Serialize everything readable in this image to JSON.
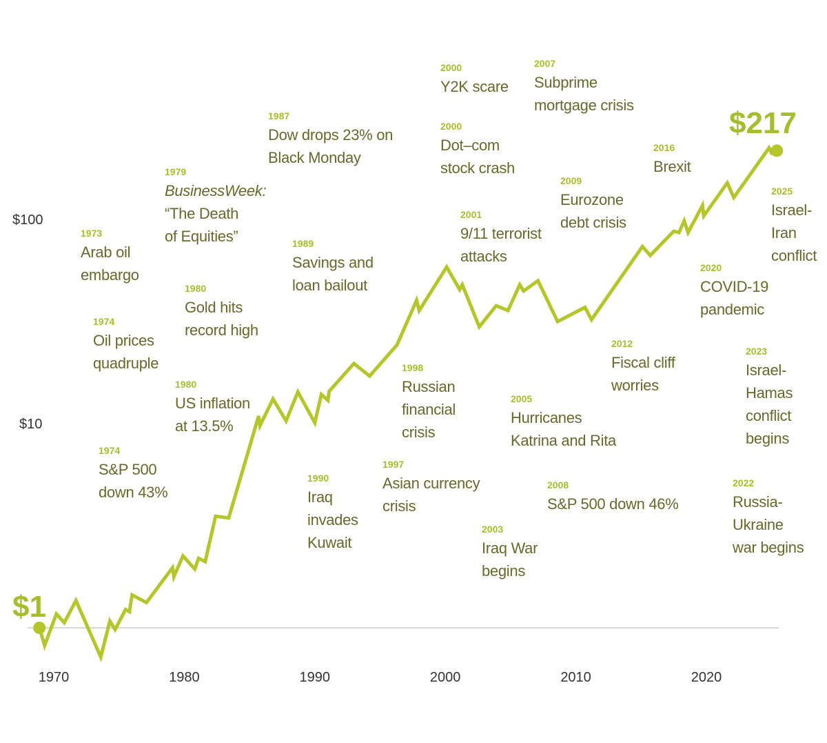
{
  "chart_data": {
    "type": "line",
    "log_scale": true,
    "color": "#b5c62a",
    "x": [
      1968.9,
      1969.3,
      1970.2,
      1970.8,
      1971.7,
      1973.6,
      1974.3,
      1974.7,
      1975.5,
      1975.8,
      1976.0,
      1977.1,
      1979.1,
      1979.2,
      1979.9,
      1980.8,
      1981.1,
      1981.6,
      1982.4,
      1983.4,
      1985.7,
      1985.8,
      1986.8,
      1987.8,
      1988.7,
      1990.0,
      1990.5,
      1991.0,
      1991.1,
      1993.0,
      1994.2,
      1996.3,
      1997.8,
      1998.0,
      2000.1,
      2001.1,
      2001.3,
      2002.6,
      2003.9,
      2004.8,
      2005.7,
      2006.0,
      2007.1,
      2008.6,
      2010.7,
      2011.2,
      2015.1,
      2015.7,
      2017.5,
      2017.9,
      2018.3,
      2018.6,
      2019.7,
      2019.8,
      2021.6,
      2022.1,
      2024.8,
      2025.0,
      2025.4
    ],
    "values": [
      1,
      0.82,
      1.17,
      1.06,
      1.36,
      0.72,
      1.08,
      0.98,
      1.23,
      1.2,
      1.45,
      1.33,
      1.97,
      1.78,
      2.25,
      1.94,
      2.19,
      2.11,
      3.52,
      3.45,
      10.9,
      9.77,
      13.2,
      10.3,
      14.3,
      10.1,
      13.9,
      13.0,
      14.4,
      19.7,
      17.1,
      24.3,
      40.2,
      35.8,
      58.5,
      45.3,
      47.9,
      29.8,
      37.8,
      35.8,
      47.9,
      44.6,
      50.1,
      31.6,
      37.1,
      32.3,
      73.7,
      66.6,
      87.5,
      86.2,
      98.4,
      86.2,
      117,
      104,
      151,
      128,
      224,
      211,
      217
    ],
    "end_label": "$217",
    "xlim": [
      1968,
      2026
    ],
    "xticks": [
      1970,
      1980,
      1990,
      2000,
      2010,
      2020
    ],
    "ylim": [
      0.7,
      300
    ],
    "yticks": [
      {
        "value": 1,
        "label": "$1"
      },
      {
        "value": 10,
        "label": "$10"
      },
      {
        "value": 100,
        "label": "$100"
      }
    ],
    "baseline": 1,
    "annotations": [
      {
        "year": "1973",
        "lines": [
          "Arab oil",
          "embargo"
        ]
      },
      {
        "year": "1974",
        "lines": [
          "Oil prices",
          "quadruple"
        ]
      },
      {
        "year": "1974",
        "lines": [
          "S&P 500",
          "down 43%"
        ]
      },
      {
        "year": "1979",
        "lines": [
          "BusinessWeek:",
          "“The Death",
          "of Equities”"
        ]
      },
      {
        "year": "1980",
        "lines": [
          "Gold hits",
          "record high"
        ]
      },
      {
        "year": "1980",
        "lines": [
          "US inflation",
          "at 13.5%"
        ]
      },
      {
        "year": "1987",
        "lines": [
          "Dow drops 23% on",
          "Black Monday"
        ]
      },
      {
        "year": "1989",
        "lines": [
          "Savings and",
          "loan bailout"
        ]
      },
      {
        "year": "1990",
        "lines": [
          "Iraq",
          "invades",
          "Kuwait"
        ]
      },
      {
        "year": "1997",
        "lines": [
          "Asian currency",
          "crisis"
        ]
      },
      {
        "year": "1998",
        "lines": [
          "Russian",
          "financial",
          "crisis"
        ]
      },
      {
        "year": "2000",
        "lines": [
          "Y2K scare"
        ]
      },
      {
        "year": "2000",
        "lines": [
          "Dot–com",
          "stock crash"
        ]
      },
      {
        "year": "2001",
        "lines": [
          "9/11 terrorist",
          "attacks"
        ]
      },
      {
        "year": "2003",
        "lines": [
          "Iraq War",
          "begins"
        ]
      },
      {
        "year": "2005",
        "lines": [
          "Hurricanes",
          "Katrina and Rita"
        ]
      },
      {
        "year": "2007",
        "lines": [
          "Subprime",
          "mortgage crisis"
        ]
      },
      {
        "year": "2008",
        "lines": [
          "S&P 500 down 46%"
        ]
      },
      {
        "year": "2009",
        "lines": [
          "Eurozone",
          "debt crisis"
        ]
      },
      {
        "year": "2012",
        "lines": [
          "Fiscal cliff",
          "worries"
        ]
      },
      {
        "year": "2016",
        "lines": [
          "Brexit"
        ]
      },
      {
        "year": "2020",
        "lines": [
          "COVID-19",
          "pandemic"
        ]
      },
      {
        "year": "2022",
        "lines": [
          "Russia-",
          "Ukraine",
          "war begins"
        ]
      },
      {
        "year": "2023",
        "lines": [
          "Israel-",
          "Hamas",
          "conflict",
          "begins"
        ]
      },
      {
        "year": "2025",
        "lines": [
          "Israel-",
          "Iran",
          "conflict"
        ]
      }
    ]
  }
}
